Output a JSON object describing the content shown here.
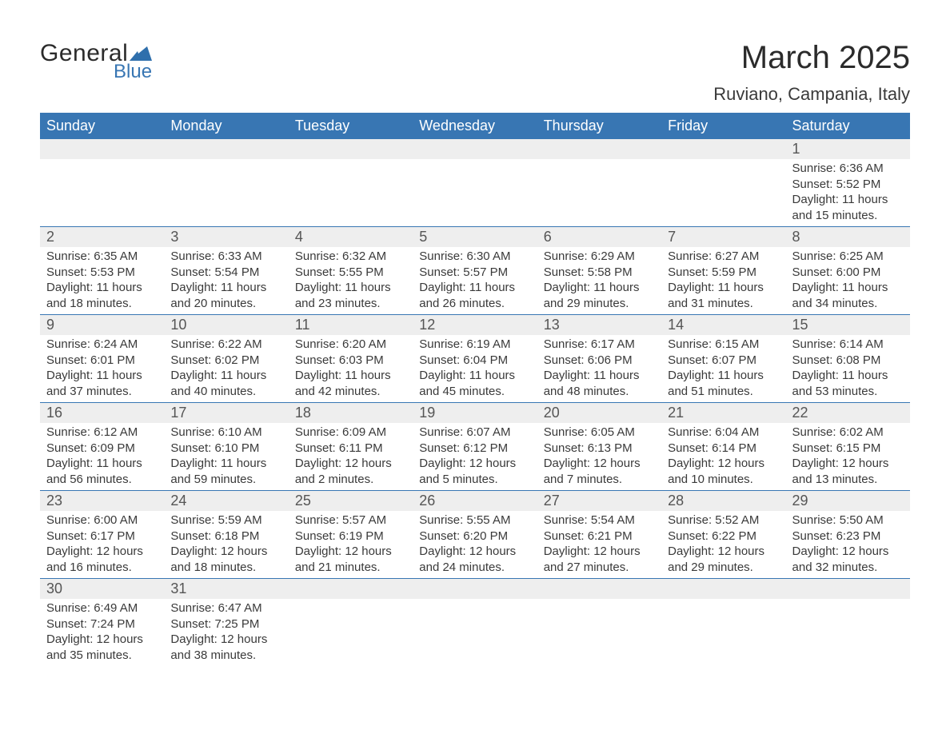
{
  "logo": {
    "text_general": "General",
    "text_blue": "Blue",
    "flag_color": "#2f6fac"
  },
  "header": {
    "month_title": "March 2025",
    "location": "Ruviano, Campania, Italy"
  },
  "calendar": {
    "header_bg": "#3876b3",
    "header_text_color": "#ffffff",
    "row_border_color": "#3876b3",
    "daynum_bg": "#eeeeee",
    "text_color": "#3a3a3a",
    "columns": [
      "Sunday",
      "Monday",
      "Tuesday",
      "Wednesday",
      "Thursday",
      "Friday",
      "Saturday"
    ],
    "weeks": [
      [
        null,
        null,
        null,
        null,
        null,
        null,
        {
          "n": "1",
          "sunrise": "Sunrise: 6:36 AM",
          "sunset": "Sunset: 5:52 PM",
          "dl1": "Daylight: 11 hours",
          "dl2": "and 15 minutes."
        }
      ],
      [
        {
          "n": "2",
          "sunrise": "Sunrise: 6:35 AM",
          "sunset": "Sunset: 5:53 PM",
          "dl1": "Daylight: 11 hours",
          "dl2": "and 18 minutes."
        },
        {
          "n": "3",
          "sunrise": "Sunrise: 6:33 AM",
          "sunset": "Sunset: 5:54 PM",
          "dl1": "Daylight: 11 hours",
          "dl2": "and 20 minutes."
        },
        {
          "n": "4",
          "sunrise": "Sunrise: 6:32 AM",
          "sunset": "Sunset: 5:55 PM",
          "dl1": "Daylight: 11 hours",
          "dl2": "and 23 minutes."
        },
        {
          "n": "5",
          "sunrise": "Sunrise: 6:30 AM",
          "sunset": "Sunset: 5:57 PM",
          "dl1": "Daylight: 11 hours",
          "dl2": "and 26 minutes."
        },
        {
          "n": "6",
          "sunrise": "Sunrise: 6:29 AM",
          "sunset": "Sunset: 5:58 PM",
          "dl1": "Daylight: 11 hours",
          "dl2": "and 29 minutes."
        },
        {
          "n": "7",
          "sunrise": "Sunrise: 6:27 AM",
          "sunset": "Sunset: 5:59 PM",
          "dl1": "Daylight: 11 hours",
          "dl2": "and 31 minutes."
        },
        {
          "n": "8",
          "sunrise": "Sunrise: 6:25 AM",
          "sunset": "Sunset: 6:00 PM",
          "dl1": "Daylight: 11 hours",
          "dl2": "and 34 minutes."
        }
      ],
      [
        {
          "n": "9",
          "sunrise": "Sunrise: 6:24 AM",
          "sunset": "Sunset: 6:01 PM",
          "dl1": "Daylight: 11 hours",
          "dl2": "and 37 minutes."
        },
        {
          "n": "10",
          "sunrise": "Sunrise: 6:22 AM",
          "sunset": "Sunset: 6:02 PM",
          "dl1": "Daylight: 11 hours",
          "dl2": "and 40 minutes."
        },
        {
          "n": "11",
          "sunrise": "Sunrise: 6:20 AM",
          "sunset": "Sunset: 6:03 PM",
          "dl1": "Daylight: 11 hours",
          "dl2": "and 42 minutes."
        },
        {
          "n": "12",
          "sunrise": "Sunrise: 6:19 AM",
          "sunset": "Sunset: 6:04 PM",
          "dl1": "Daylight: 11 hours",
          "dl2": "and 45 minutes."
        },
        {
          "n": "13",
          "sunrise": "Sunrise: 6:17 AM",
          "sunset": "Sunset: 6:06 PM",
          "dl1": "Daylight: 11 hours",
          "dl2": "and 48 minutes."
        },
        {
          "n": "14",
          "sunrise": "Sunrise: 6:15 AM",
          "sunset": "Sunset: 6:07 PM",
          "dl1": "Daylight: 11 hours",
          "dl2": "and 51 minutes."
        },
        {
          "n": "15",
          "sunrise": "Sunrise: 6:14 AM",
          "sunset": "Sunset: 6:08 PM",
          "dl1": "Daylight: 11 hours",
          "dl2": "and 53 minutes."
        }
      ],
      [
        {
          "n": "16",
          "sunrise": "Sunrise: 6:12 AM",
          "sunset": "Sunset: 6:09 PM",
          "dl1": "Daylight: 11 hours",
          "dl2": "and 56 minutes."
        },
        {
          "n": "17",
          "sunrise": "Sunrise: 6:10 AM",
          "sunset": "Sunset: 6:10 PM",
          "dl1": "Daylight: 11 hours",
          "dl2": "and 59 minutes."
        },
        {
          "n": "18",
          "sunrise": "Sunrise: 6:09 AM",
          "sunset": "Sunset: 6:11 PM",
          "dl1": "Daylight: 12 hours",
          "dl2": "and 2 minutes."
        },
        {
          "n": "19",
          "sunrise": "Sunrise: 6:07 AM",
          "sunset": "Sunset: 6:12 PM",
          "dl1": "Daylight: 12 hours",
          "dl2": "and 5 minutes."
        },
        {
          "n": "20",
          "sunrise": "Sunrise: 6:05 AM",
          "sunset": "Sunset: 6:13 PM",
          "dl1": "Daylight: 12 hours",
          "dl2": "and 7 minutes."
        },
        {
          "n": "21",
          "sunrise": "Sunrise: 6:04 AM",
          "sunset": "Sunset: 6:14 PM",
          "dl1": "Daylight: 12 hours",
          "dl2": "and 10 minutes."
        },
        {
          "n": "22",
          "sunrise": "Sunrise: 6:02 AM",
          "sunset": "Sunset: 6:15 PM",
          "dl1": "Daylight: 12 hours",
          "dl2": "and 13 minutes."
        }
      ],
      [
        {
          "n": "23",
          "sunrise": "Sunrise: 6:00 AM",
          "sunset": "Sunset: 6:17 PM",
          "dl1": "Daylight: 12 hours",
          "dl2": "and 16 minutes."
        },
        {
          "n": "24",
          "sunrise": "Sunrise: 5:59 AM",
          "sunset": "Sunset: 6:18 PM",
          "dl1": "Daylight: 12 hours",
          "dl2": "and 18 minutes."
        },
        {
          "n": "25",
          "sunrise": "Sunrise: 5:57 AM",
          "sunset": "Sunset: 6:19 PM",
          "dl1": "Daylight: 12 hours",
          "dl2": "and 21 minutes."
        },
        {
          "n": "26",
          "sunrise": "Sunrise: 5:55 AM",
          "sunset": "Sunset: 6:20 PM",
          "dl1": "Daylight: 12 hours",
          "dl2": "and 24 minutes."
        },
        {
          "n": "27",
          "sunrise": "Sunrise: 5:54 AM",
          "sunset": "Sunset: 6:21 PM",
          "dl1": "Daylight: 12 hours",
          "dl2": "and 27 minutes."
        },
        {
          "n": "28",
          "sunrise": "Sunrise: 5:52 AM",
          "sunset": "Sunset: 6:22 PM",
          "dl1": "Daylight: 12 hours",
          "dl2": "and 29 minutes."
        },
        {
          "n": "29",
          "sunrise": "Sunrise: 5:50 AM",
          "sunset": "Sunset: 6:23 PM",
          "dl1": "Daylight: 12 hours",
          "dl2": "and 32 minutes."
        }
      ],
      [
        {
          "n": "30",
          "sunrise": "Sunrise: 6:49 AM",
          "sunset": "Sunset: 7:24 PM",
          "dl1": "Daylight: 12 hours",
          "dl2": "and 35 minutes."
        },
        {
          "n": "31",
          "sunrise": "Sunrise: 6:47 AM",
          "sunset": "Sunset: 7:25 PM",
          "dl1": "Daylight: 12 hours",
          "dl2": "and 38 minutes."
        },
        null,
        null,
        null,
        null,
        null
      ]
    ]
  }
}
